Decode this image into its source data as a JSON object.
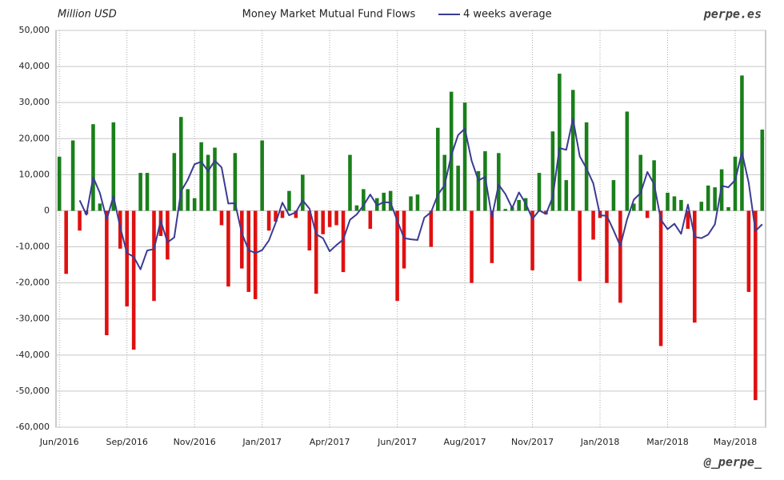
{
  "chart_data": {
    "type": "bar",
    "title": "Money Market Mutual Fund Flows",
    "y_label": "Million USD",
    "watermark": "perpe.es",
    "footer": "@_perpe_",
    "categories": [
      "Jun/2016",
      null,
      null,
      null,
      null,
      null,
      null,
      null,
      null,
      null,
      "Sep/2016",
      null,
      null,
      null,
      null,
      null,
      null,
      null,
      null,
      null,
      "Nov/2016",
      null,
      null,
      null,
      null,
      null,
      null,
      null,
      null,
      null,
      "Jan/2017",
      null,
      null,
      null,
      null,
      null,
      null,
      null,
      null,
      null,
      "Apr/2017",
      null,
      null,
      null,
      null,
      null,
      null,
      null,
      null,
      null,
      "Jun/2017",
      null,
      null,
      null,
      null,
      null,
      null,
      null,
      null,
      null,
      "Aug/2017",
      null,
      null,
      null,
      null,
      null,
      null,
      null,
      null,
      null,
      "Nov/2017",
      null,
      null,
      null,
      null,
      null,
      null,
      null,
      null,
      null,
      "Jan/2018",
      null,
      null,
      null,
      null,
      null,
      null,
      null,
      null,
      null,
      "Mar/2018",
      null,
      null,
      null,
      null,
      null,
      null,
      null,
      null,
      null,
      "May/2018",
      null,
      null,
      null,
      null
    ],
    "values": [
      15000,
      -17500,
      19500,
      -5500,
      -1000,
      24000,
      2000,
      -34500,
      24500,
      -10500,
      -26500,
      -38500,
      10500,
      10500,
      -25000,
      -7000,
      -13500,
      16000,
      26000,
      6000,
      3500,
      19000,
      15500,
      17500,
      -4000,
      -21000,
      16000,
      -16000,
      -22500,
      -24500,
      19500,
      -5500,
      -3000,
      -2000,
      5500,
      -2000,
      10000,
      -11000,
      -23000,
      -6500,
      -4500,
      -4000,
      -17000,
      15500,
      1500,
      6000,
      -5000,
      3500,
      5000,
      5500,
      -25000,
      -16000,
      4000,
      4500,
      0,
      -10000,
      23000,
      15500,
      33000,
      12500,
      30000,
      -20000,
      11000,
      16500,
      -14500,
      16000,
      500,
      1000,
      3000,
      3500,
      -16500,
      10500,
      -1000,
      22000,
      38000,
      8500,
      33500,
      -19500,
      24500,
      -8000,
      -2000,
      -20000,
      8500,
      -25500,
      27500,
      2000,
      15500,
      -2000,
      14000,
      -37500,
      5000,
      4000,
      3000,
      -5000,
      -31000,
      2500,
      7000,
      6500,
      11500,
      1000,
      15000,
      37500,
      -22500,
      -52500,
      22500
    ],
    "positive_color": "#1a7f1a",
    "negative_color": "#e01010",
    "lines": [
      {
        "name": "4 weeks average",
        "color": "#3b3b94",
        "values": [
          null,
          null,
          null,
          2900,
          -1100,
          9250,
          4900,
          -2400,
          4000,
          -4600,
          -11750,
          -12750,
          -16250,
          -11000,
          -10600,
          -2750,
          -8750,
          -7400,
          5400,
          8600,
          12900,
          13600,
          11000,
          13900,
          12000,
          2000,
          2100,
          -6250,
          -10900,
          -11750,
          -10900,
          -8250,
          -3400,
          2250,
          -1250,
          -400,
          2900,
          600,
          -6500,
          -7600,
          -11250,
          -9500,
          -8000,
          -2500,
          -1000,
          1500,
          4500,
          1500,
          2400,
          2250,
          -2750,
          -7600,
          -7900,
          -8100,
          -1900,
          -400,
          4400,
          7100,
          15400,
          21000,
          22750,
          13900,
          8400,
          9400,
          -1750,
          7250,
          4600,
          750,
          5100,
          2000,
          -2250,
          100,
          -900,
          3750,
          17400,
          16900,
          25500,
          15100,
          11750,
          7600,
          -1250,
          -1400,
          -5400,
          -9750,
          -2400,
          3100,
          4900,
          10750,
          7400,
          -2500,
          -5100,
          -3600,
          -6400,
          1750,
          -7250,
          -7600,
          -6600,
          -3750,
          6900,
          6500,
          8500,
          16250,
          7750,
          -5600,
          -3750
        ]
      }
    ],
    "ylim": [
      -60000,
      50000
    ],
    "yticks": [
      {
        "value": -60000,
        "label": "-60,000"
      },
      {
        "value": -50000,
        "label": "-50,000"
      },
      {
        "value": -40000,
        "label": "-40,000"
      },
      {
        "value": -30000,
        "label": "-30,000"
      },
      {
        "value": -20000,
        "label": "-20,000"
      },
      {
        "value": -10000,
        "label": "-10,000"
      },
      0,
      {
        "value": 10000,
        "label": "10,000"
      },
      {
        "value": 20000,
        "label": "20,000"
      },
      {
        "value": 30000,
        "label": "30,000"
      },
      {
        "value": 40000,
        "label": "40,000"
      },
      {
        "value": 50000,
        "label": "50,000"
      }
    ],
    "grid": true
  }
}
